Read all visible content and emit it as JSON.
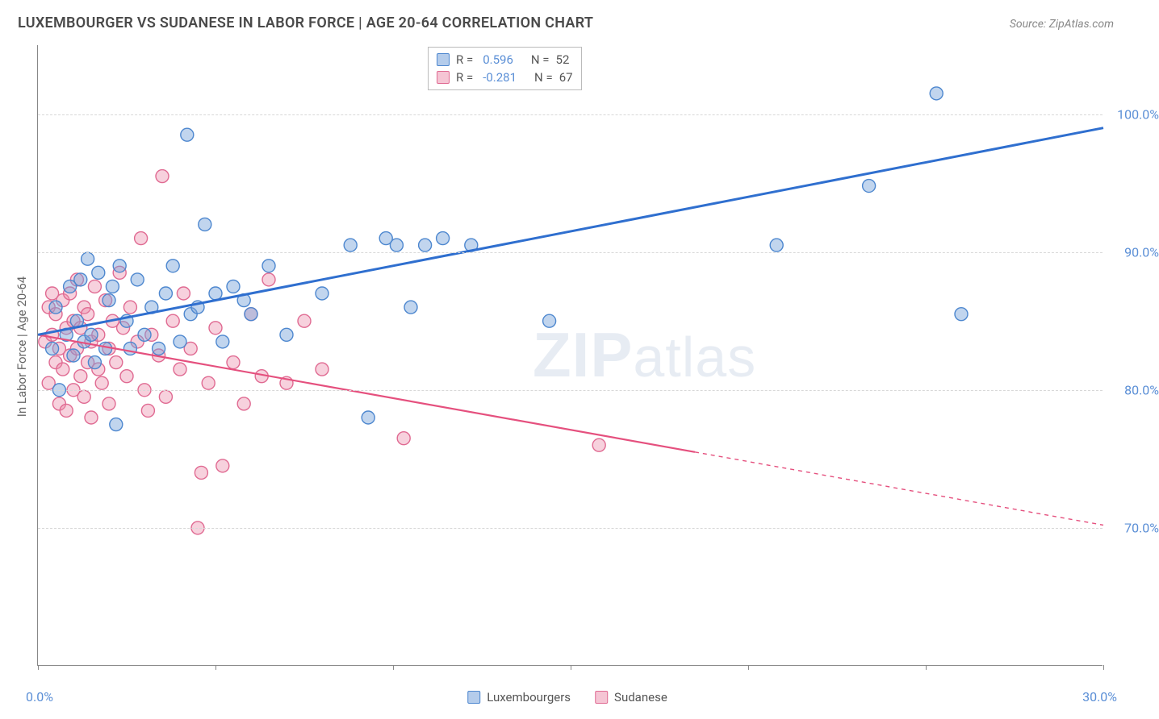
{
  "title": "LUXEMBOURGER VS SUDANESE IN LABOR FORCE | AGE 20-64 CORRELATION CHART",
  "source": "Source: ZipAtlas.com",
  "ylabel": "In Labor Force | Age 20-64",
  "watermark_a": "ZIP",
  "watermark_b": "atlas",
  "chart": {
    "type": "scatter",
    "xlim": [
      0,
      30
    ],
    "ylim": [
      60,
      105
    ],
    "y_gridlines": [
      70,
      80,
      90,
      100
    ],
    "y_tick_labels": [
      "70.0%",
      "80.0%",
      "90.0%",
      "100.0%"
    ],
    "x_tick_positions": [
      0,
      5,
      10,
      15,
      20,
      25,
      30
    ],
    "x_endpoint_labels": {
      "0": "0.0%",
      "30": "30.0%"
    },
    "background_color": "#ffffff",
    "grid_color": "#d8d8d8",
    "axis_color": "#888888",
    "tick_label_color": "#5b8fd6",
    "marker_radius": 8,
    "marker_stroke_width": 1.4,
    "line_width": 3,
    "series": [
      {
        "name": "Luxembourgers",
        "fill": "rgba(118,162,218,0.45)",
        "stroke": "#4d87cf",
        "line_color": "#2f6fcf",
        "R": "0.596",
        "N": "52",
        "trend": {
          "x1": 0,
          "y1": 84,
          "x2": 30,
          "y2": 99
        },
        "points": [
          [
            0.4,
            83
          ],
          [
            0.5,
            86
          ],
          [
            0.6,
            80
          ],
          [
            0.8,
            84
          ],
          [
            0.9,
            87.5
          ],
          [
            1.0,
            82.5
          ],
          [
            1.1,
            85
          ],
          [
            1.2,
            88
          ],
          [
            1.3,
            83.5
          ],
          [
            1.4,
            89.5
          ],
          [
            1.5,
            84
          ],
          [
            1.6,
            82
          ],
          [
            1.7,
            88.5
          ],
          [
            1.9,
            83
          ],
          [
            2.0,
            86.5
          ],
          [
            2.1,
            87.5
          ],
          [
            2.2,
            77.5
          ],
          [
            2.3,
            89
          ],
          [
            2.5,
            85
          ],
          [
            2.6,
            83
          ],
          [
            2.8,
            88
          ],
          [
            3.0,
            84
          ],
          [
            3.2,
            86
          ],
          [
            3.4,
            83
          ],
          [
            3.6,
            87
          ],
          [
            3.8,
            89
          ],
          [
            4.0,
            83.5
          ],
          [
            4.2,
            98.5
          ],
          [
            4.3,
            85.5
          ],
          [
            4.5,
            86
          ],
          [
            4.7,
            92
          ],
          [
            5.0,
            87
          ],
          [
            5.2,
            83.5
          ],
          [
            5.5,
            87.5
          ],
          [
            5.8,
            86.5
          ],
          [
            6.0,
            85.5
          ],
          [
            6.5,
            89
          ],
          [
            7.0,
            84
          ],
          [
            8.0,
            87
          ],
          [
            8.8,
            90.5
          ],
          [
            9.3,
            78
          ],
          [
            9.8,
            91
          ],
          [
            10.1,
            90.5
          ],
          [
            10.5,
            86
          ],
          [
            10.9,
            90.5
          ],
          [
            11.4,
            91
          ],
          [
            12.2,
            90.5
          ],
          [
            14.4,
            85
          ],
          [
            20.8,
            90.5
          ],
          [
            23.4,
            94.8
          ],
          [
            25.3,
            101.5
          ],
          [
            26.0,
            85.5
          ]
        ]
      },
      {
        "name": "Sudanese",
        "fill": "rgba(236,140,170,0.40)",
        "stroke": "#e06a92",
        "line_color": "#e5507e",
        "R": "-0.281",
        "N": "67",
        "trend_solid": {
          "x1": 0,
          "y1": 84,
          "x2": 18.5,
          "y2": 75.5
        },
        "trend_dashed": {
          "x1": 18.5,
          "y1": 75.5,
          "x2": 30,
          "y2": 70.2
        },
        "points": [
          [
            0.2,
            83.5
          ],
          [
            0.3,
            86
          ],
          [
            0.3,
            80.5
          ],
          [
            0.4,
            84
          ],
          [
            0.4,
            87
          ],
          [
            0.5,
            82
          ],
          [
            0.5,
            85.5
          ],
          [
            0.6,
            79
          ],
          [
            0.6,
            83
          ],
          [
            0.7,
            81.5
          ],
          [
            0.7,
            86.5
          ],
          [
            0.8,
            84.5
          ],
          [
            0.8,
            78.5
          ],
          [
            0.9,
            82.5
          ],
          [
            0.9,
            87
          ],
          [
            1.0,
            80
          ],
          [
            1.0,
            85
          ],
          [
            1.1,
            83
          ],
          [
            1.1,
            88
          ],
          [
            1.2,
            81
          ],
          [
            1.2,
            84.5
          ],
          [
            1.3,
            79.5
          ],
          [
            1.3,
            86
          ],
          [
            1.4,
            82
          ],
          [
            1.4,
            85.5
          ],
          [
            1.5,
            78
          ],
          [
            1.5,
            83.5
          ],
          [
            1.6,
            87.5
          ],
          [
            1.7,
            81.5
          ],
          [
            1.7,
            84
          ],
          [
            1.8,
            80.5
          ],
          [
            1.9,
            86.5
          ],
          [
            2.0,
            83
          ],
          [
            2.0,
            79
          ],
          [
            2.1,
            85
          ],
          [
            2.2,
            82
          ],
          [
            2.3,
            88.5
          ],
          [
            2.4,
            84.5
          ],
          [
            2.5,
            81
          ],
          [
            2.6,
            86
          ],
          [
            2.8,
            83.5
          ],
          [
            2.9,
            91
          ],
          [
            3.0,
            80
          ],
          [
            3.1,
            78.5
          ],
          [
            3.2,
            84
          ],
          [
            3.4,
            82.5
          ],
          [
            3.5,
            95.5
          ],
          [
            3.6,
            79.5
          ],
          [
            3.8,
            85
          ],
          [
            4.0,
            81.5
          ],
          [
            4.1,
            87
          ],
          [
            4.3,
            83
          ],
          [
            4.5,
            70
          ],
          [
            4.6,
            74
          ],
          [
            4.8,
            80.5
          ],
          [
            5.0,
            84.5
          ],
          [
            5.2,
            74.5
          ],
          [
            5.5,
            82
          ],
          [
            5.8,
            79
          ],
          [
            6.0,
            85.5
          ],
          [
            6.3,
            81
          ],
          [
            6.5,
            88
          ],
          [
            7.0,
            80.5
          ],
          [
            7.5,
            85
          ],
          [
            8.0,
            81.5
          ],
          [
            10.3,
            76.5
          ],
          [
            15.8,
            76
          ]
        ]
      }
    ]
  },
  "legend_box": {
    "swatch_blue_fill": "rgba(118,162,218,0.55)",
    "swatch_blue_border": "#4d87cf",
    "swatch_pink_fill": "rgba(236,140,170,0.50)",
    "swatch_pink_border": "#e06a92"
  },
  "bottom_legend": {
    "label_a": "Luxembourgers",
    "label_b": "Sudanese"
  }
}
